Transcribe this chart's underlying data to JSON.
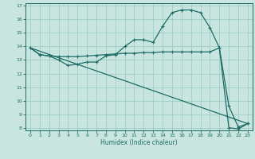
{
  "xlabel": "Humidex (Indice chaleur)",
  "xlim": [
    -0.5,
    23.5
  ],
  "ylim": [
    7.8,
    17.2
  ],
  "yticks": [
    8,
    9,
    10,
    11,
    12,
    13,
    14,
    15,
    16,
    17
  ],
  "xticks": [
    0,
    1,
    2,
    3,
    4,
    5,
    6,
    7,
    8,
    9,
    10,
    11,
    12,
    13,
    14,
    15,
    16,
    17,
    18,
    19,
    20,
    21,
    22,
    23
  ],
  "background_color": "#c8e6df",
  "grid_color": "#9ecec6",
  "line_color": "#1e6b65",
  "line1_x": [
    0,
    1,
    2,
    3,
    4,
    5,
    6,
    7,
    8,
    9,
    10,
    11,
    12,
    13,
    14,
    15,
    16,
    17,
    18,
    19,
    20,
    21,
    22,
    23
  ],
  "line1_y": [
    13.9,
    13.4,
    13.3,
    13.0,
    12.6,
    12.7,
    12.85,
    12.85,
    13.3,
    13.4,
    14.0,
    14.5,
    14.5,
    14.3,
    15.5,
    16.5,
    16.7,
    16.7,
    16.5,
    15.4,
    13.9,
    9.6,
    8.05,
    8.3
  ],
  "line2_x": [
    0,
    1,
    2,
    3,
    4,
    5,
    6,
    7,
    8,
    9,
    10,
    11,
    12,
    13,
    14,
    15,
    16,
    17,
    18,
    19,
    20,
    21,
    22,
    23
  ],
  "line2_y": [
    13.9,
    13.4,
    13.3,
    13.25,
    13.25,
    13.25,
    13.3,
    13.35,
    13.4,
    13.45,
    13.5,
    13.5,
    13.55,
    13.55,
    13.6,
    13.6,
    13.6,
    13.6,
    13.6,
    13.6,
    13.9,
    8.0,
    7.9,
    8.3
  ],
  "line3_x": [
    0,
    23
  ],
  "line3_y": [
    13.9,
    8.3
  ]
}
